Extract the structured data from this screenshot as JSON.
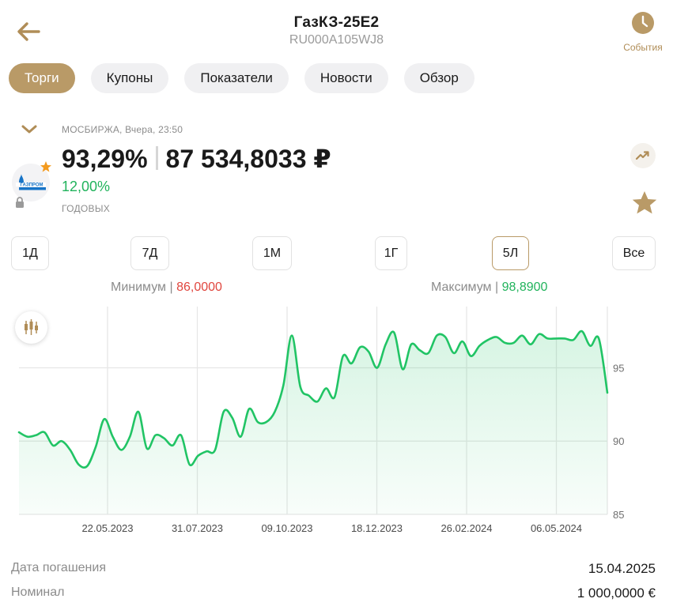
{
  "header": {
    "title": "ГазКЗ-25Е2",
    "isin": "RU000A105WJ8",
    "events_label": "События",
    "back_icon": "arrow-left-icon",
    "events_icon": "clock-icon"
  },
  "tabs": [
    {
      "label": "Торги",
      "active": true
    },
    {
      "label": "Купоны",
      "active": false
    },
    {
      "label": "Показатели",
      "active": false
    },
    {
      "label": "Новости",
      "active": false
    },
    {
      "label": "Обзор",
      "active": false
    }
  ],
  "quote": {
    "exchange_time": "МОСБИРЖА, Вчера, 23:50",
    "price_percent": "93,29%",
    "price_rub": "87 534,8033 ₽",
    "yield": "12,00%",
    "yield_label": "ГОДОВЫХ",
    "logo_text": "ГАЗПРОМ"
  },
  "ranges": [
    {
      "label": "1Д",
      "active": false
    },
    {
      "label": "7Д",
      "active": false
    },
    {
      "label": "1М",
      "active": false
    },
    {
      "label": "1Г",
      "active": false
    },
    {
      "label": "5Л",
      "active": true
    },
    {
      "label": "Все",
      "active": false
    }
  ],
  "stats": {
    "min_label": "Минимум",
    "min_value": "86,0000",
    "max_label": "Максимум",
    "max_value": "98,8900"
  },
  "chart_data": {
    "type": "area",
    "x_ticks": [
      "22.05.2023",
      "31.07.2023",
      "09.10.2023",
      "18.12.2023",
      "26.02.2024",
      "06.05.2024"
    ],
    "y_ticks": [
      85,
      90,
      95
    ],
    "ylim": [
      85,
      99.5
    ],
    "grid": true,
    "series": [
      {
        "values": [
          90.6,
          90.3,
          90.4,
          90.6,
          89.7,
          90.0,
          89.4,
          88.4,
          88.3,
          89.6,
          91.5,
          90.3,
          89.4,
          90.3,
          92.0,
          89.5,
          90.4,
          90.2,
          89.7,
          90.4,
          88.4,
          89.0,
          89.3,
          89.4,
          92.0,
          91.6,
          90.3,
          92.2,
          91.3,
          91.3,
          92.0,
          93.8,
          97.2,
          93.7,
          93.1,
          92.7,
          93.6,
          93.0,
          95.8,
          95.3,
          96.4,
          96.1,
          95.0,
          96.6,
          97.4,
          94.9,
          96.6,
          96.2,
          96.0,
          97.2,
          97.1,
          96.0,
          96.8,
          95.8,
          96.5,
          96.9,
          97.1,
          96.7,
          96.7,
          97.2,
          96.6,
          97.3,
          97.0,
          97.0,
          97.0,
          96.9,
          97.5,
          96.5,
          97.0,
          93.3
        ]
      }
    ]
  },
  "info": [
    {
      "label": "Дата погашения",
      "value": "15.04.2025"
    },
    {
      "label": "Номинал",
      "value": "1 000,0000 €"
    }
  ]
}
